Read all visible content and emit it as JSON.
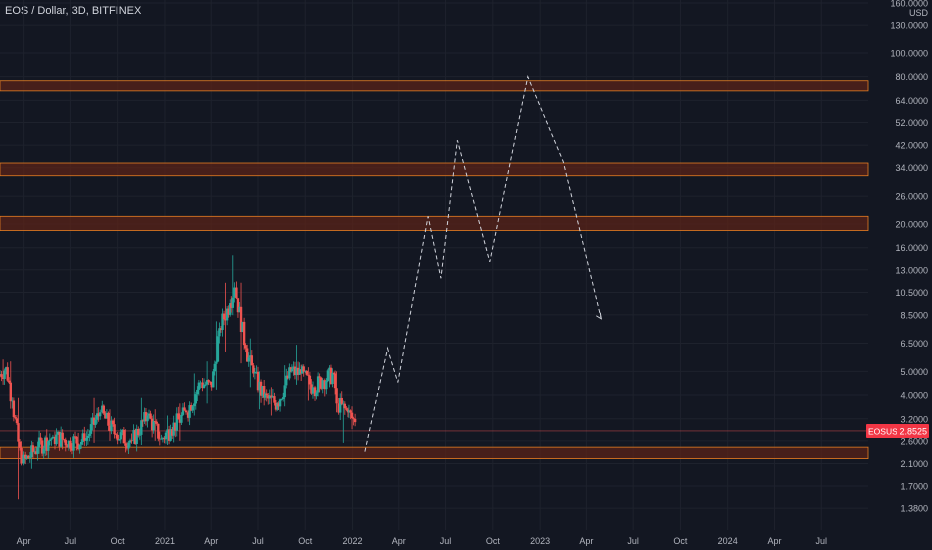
{
  "header": {
    "symbol": "EOS / Dollar",
    "interval": "3D",
    "exchange": "BITFINEX",
    "separator": ", "
  },
  "price_axis": {
    "currency": "USD"
  },
  "price_tag": {
    "symbol": "EOSUSD",
    "value": "2.8525"
  },
  "colors": {
    "background": "#131722",
    "up": "#26a69a",
    "down": "#ef5350",
    "zone_fill": "#5a2318",
    "zone_border": "#e67e22",
    "projection": "#d1d4dc",
    "axis_text": "#b2b5be"
  },
  "chart_data": {
    "type": "candlestick",
    "title": "",
    "y_scale": "log",
    "ylim": [
      1.2,
      160
    ],
    "y_ticks": [
      "160.0000",
      "130.0000",
      "100.0000",
      "80.0000",
      "64.0000",
      "52.0000",
      "42.0000",
      "34.0000",
      "26.0000",
      "20.0000",
      "16.0000",
      "13.0000",
      "10.5000",
      "8.5000",
      "6.5000",
      "5.0000",
      "4.0000",
      "3.2000",
      "2.6000",
      "2.1000",
      "1.7000",
      "1.3800"
    ],
    "x_ticks": [
      "Apr",
      "Jul",
      "Oct",
      "2021",
      "Apr",
      "Jul",
      "Oct",
      "2022",
      "Apr",
      "Jul",
      "Oct",
      "2023",
      "Apr",
      "Jul",
      "Oct",
      "2024",
      "Apr",
      "Jul"
    ],
    "x_range": [
      "2020-02-15",
      "2024-09-30"
    ],
    "grid": true,
    "resistance_zones": [
      {
        "low": 70.0,
        "high": 77.0
      },
      {
        "low": 31.5,
        "high": 35.5
      },
      {
        "low": 18.8,
        "high": 21.5
      },
      {
        "low": 2.2,
        "high": 2.45
      }
    ],
    "last_price_line": 2.8525,
    "candles_estimated": [
      {
        "date": "2020-02-15",
        "open": 4.8,
        "high": 5.6,
        "low": 4.4,
        "close": 5.2
      },
      {
        "date": "2020-03-01",
        "open": 5.2,
        "high": 5.5,
        "low": 3.6,
        "close": 3.8
      },
      {
        "date": "2020-03-13",
        "open": 3.8,
        "high": 3.9,
        "low": 1.5,
        "close": 2.1
      },
      {
        "date": "2020-04-01",
        "open": 2.1,
        "high": 2.6,
        "low": 2.0,
        "close": 2.45
      },
      {
        "date": "2020-05-01",
        "open": 2.45,
        "high": 2.9,
        "low": 2.3,
        "close": 2.7
      },
      {
        "date": "2020-06-01",
        "open": 2.7,
        "high": 2.9,
        "low": 2.4,
        "close": 2.6
      },
      {
        "date": "2020-07-01",
        "open": 2.6,
        "high": 2.8,
        "low": 2.4,
        "close": 2.6
      },
      {
        "date": "2020-08-01",
        "open": 2.6,
        "high": 3.9,
        "low": 2.55,
        "close": 3.4
      },
      {
        "date": "2020-09-01",
        "open": 3.4,
        "high": 3.5,
        "low": 2.6,
        "close": 2.75
      },
      {
        "date": "2020-10-01",
        "open": 2.75,
        "high": 2.9,
        "low": 2.4,
        "close": 2.6
      },
      {
        "date": "2020-11-01",
        "open": 2.6,
        "high": 3.9,
        "low": 2.5,
        "close": 3.3
      },
      {
        "date": "2020-12-01",
        "open": 3.3,
        "high": 3.5,
        "low": 2.6,
        "close": 2.65
      },
      {
        "date": "2020-12-28",
        "open": 2.65,
        "high": 3.3,
        "low": 2.5,
        "close": 2.9
      },
      {
        "date": "2021-01-15",
        "open": 2.9,
        "high": 3.7,
        "low": 2.6,
        "close": 3.4
      },
      {
        "date": "2021-02-15",
        "open": 3.4,
        "high": 4.9,
        "low": 3.3,
        "close": 4.5
      },
      {
        "date": "2021-03-15",
        "open": 4.5,
        "high": 5.5,
        "low": 3.7,
        "close": 4.3
      },
      {
        "date": "2021-04-05",
        "open": 4.3,
        "high": 8.0,
        "low": 4.2,
        "close": 7.5
      },
      {
        "date": "2021-04-20",
        "open": 7.5,
        "high": 11.5,
        "low": 6.0,
        "close": 9.5
      },
      {
        "date": "2021-05-10",
        "open": 9.5,
        "high": 14.9,
        "low": 8.5,
        "close": 11.0
      },
      {
        "date": "2021-05-20",
        "open": 11.0,
        "high": 11.5,
        "low": 5.4,
        "close": 6.2
      },
      {
        "date": "2021-06-10",
        "open": 6.2,
        "high": 6.8,
        "low": 4.3,
        "close": 4.9
      },
      {
        "date": "2021-06-25",
        "open": 4.9,
        "high": 5.0,
        "low": 3.5,
        "close": 3.9
      },
      {
        "date": "2021-07-15",
        "open": 3.9,
        "high": 4.3,
        "low": 3.3,
        "close": 3.7
      },
      {
        "date": "2021-08-10",
        "open": 3.7,
        "high": 5.3,
        "low": 3.6,
        "close": 5.0
      },
      {
        "date": "2021-09-05",
        "open": 5.0,
        "high": 6.4,
        "low": 4.4,
        "close": 4.9
      },
      {
        "date": "2021-09-25",
        "open": 4.9,
        "high": 5.2,
        "low": 3.8,
        "close": 4.3
      },
      {
        "date": "2021-10-20",
        "open": 4.3,
        "high": 4.9,
        "low": 4.1,
        "close": 4.6
      },
      {
        "date": "2021-11-08",
        "open": 4.6,
        "high": 5.3,
        "low": 4.3,
        "close": 4.9
      },
      {
        "date": "2021-11-28",
        "open": 4.9,
        "high": 5.0,
        "low": 3.4,
        "close": 3.7
      },
      {
        "date": "2021-12-05",
        "open": 3.7,
        "high": 3.8,
        "low": 2.55,
        "close": 3.4
      },
      {
        "date": "2021-12-25",
        "open": 3.4,
        "high": 3.6,
        "low": 2.9,
        "close": 3.1
      },
      {
        "date": "2022-01-10",
        "open": 3.1,
        "high": 3.2,
        "low": 2.75,
        "close": 2.85
      }
    ],
    "projection_path_estimated": [
      {
        "date": "2022-01-25",
        "price": 2.35
      },
      {
        "date": "2022-03-10",
        "price": 6.2
      },
      {
        "date": "2022-03-30",
        "price": 4.5
      },
      {
        "date": "2022-05-28",
        "price": 21.5
      },
      {
        "date": "2022-06-22",
        "price": 12.0
      },
      {
        "date": "2022-07-24",
        "price": 44.0
      },
      {
        "date": "2022-09-25",
        "price": 14.0
      },
      {
        "date": "2022-12-08",
        "price": 80.0
      },
      {
        "date": "2023-02-15",
        "price": 36.0
      },
      {
        "date": "2023-04-30",
        "price": 8.2
      }
    ]
  }
}
